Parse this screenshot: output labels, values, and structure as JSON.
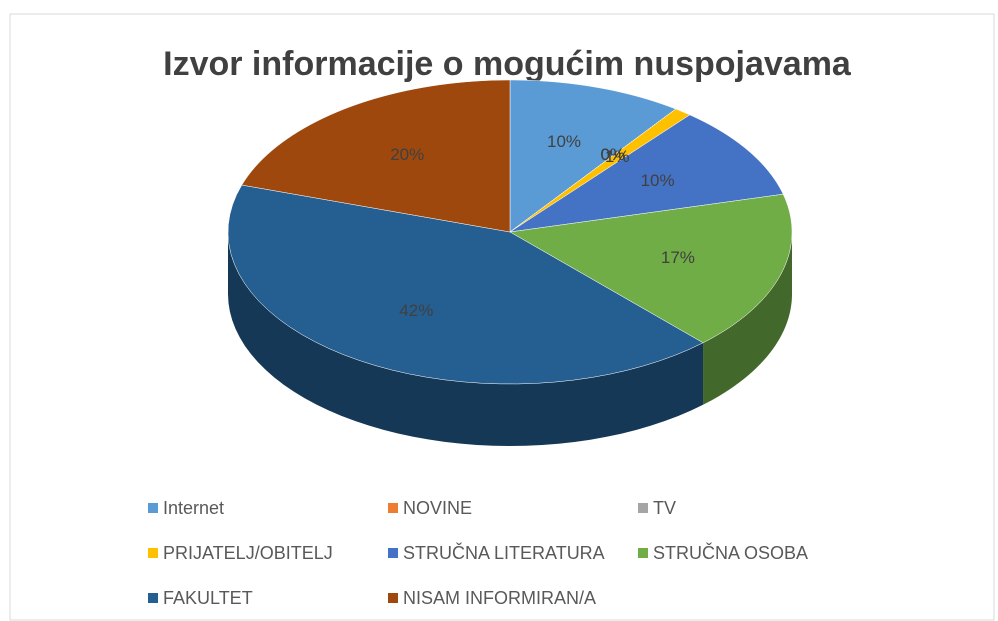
{
  "chart_data": {
    "type": "pie",
    "title": "Izvor informacije o mogućim nuspojavama",
    "categories": [
      "Internet",
      "NOVINE",
      "TV",
      "PRIJATELJ/OBITELJ",
      "STRUČNA LITERATURA",
      "STRUČNA OSOBA",
      "FAKULTET",
      "NISAM INFORMIRAN/A"
    ],
    "values": [
      10,
      0,
      0,
      1,
      10,
      17,
      42,
      20
    ],
    "value_labels": [
      "10%",
      "0%",
      "0%",
      "1%",
      "10%",
      "17%",
      "42%",
      "20%"
    ],
    "colors": [
      "#5b9bd5",
      "#ed7d31",
      "#a5a5a5",
      "#ffc000",
      "#4472c4",
      "#70ad47",
      "#255e91",
      "#9e480e"
    ],
    "legend": "bottom"
  }
}
